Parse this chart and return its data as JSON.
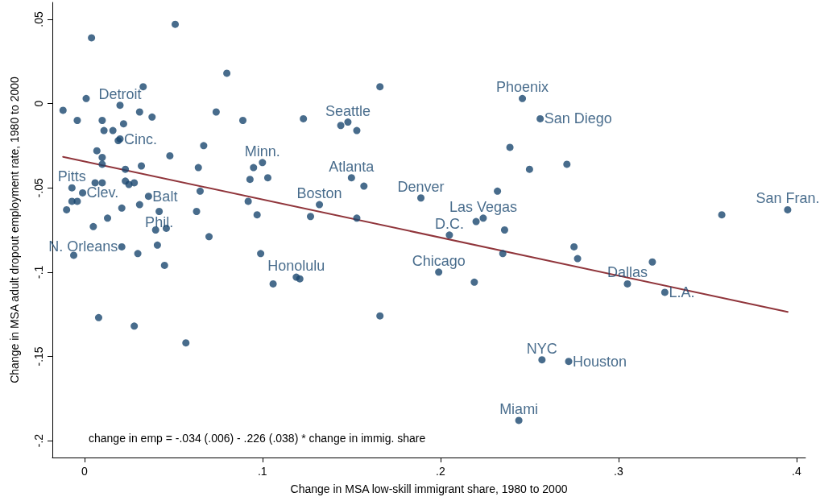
{
  "chart_data": {
    "type": "scatter",
    "xlabel": "Change in MSA low-skill immigrant share, 1980 to 2000",
    "ylabel": "Change in MSA adult dropout employment rate, 1980 to 2000",
    "xlim": [
      -0.018,
      0.405
    ],
    "ylim": [
      -0.21,
      0.06
    ],
    "xticks": [
      0,
      {
        "value": 0.1,
        "label": ".1"
      },
      {
        "value": 0.2,
        "label": ".2"
      },
      {
        "value": 0.3,
        "label": ".3"
      },
      {
        "value": 0.4,
        "label": ".4"
      }
    ],
    "yticks": [
      {
        "value": -0.2,
        "label": "-.2"
      },
      {
        "value": -0.15,
        "label": "-.15"
      },
      {
        "value": -0.1,
        "label": "-.1"
      },
      {
        "value": -0.05,
        "label": "-.05"
      },
      0,
      {
        "value": 0.05,
        "label": ".05"
      }
    ],
    "grid": false,
    "marker": "circle",
    "series": [
      {
        "type": "scatter",
        "color": "#1a476f",
        "x": [
          0.004,
          0.051,
          0.08,
          0.033,
          0.001,
          -0.012,
          -0.004,
          0.01,
          0.02,
          0.031,
          0.038,
          0.074,
          0.089,
          0.011,
          0.016,
          0.022,
          0.02,
          0.019,
          0.067,
          0.048,
          0.007,
          0.01,
          0.01,
          0.032,
          0.023,
          0.064,
          0.095,
          0.1,
          0.103,
          0.093,
          0.006,
          0.01,
          -0.007,
          -0.001,
          -0.007,
          -0.004,
          -0.01,
          0.023,
          0.025,
          0.028,
          0.036,
          0.031,
          0.021,
          0.042,
          0.063,
          0.065,
          0.092,
          0.097,
          0.013,
          0.005,
          0.04,
          0.046,
          0.07,
          0.021,
          0.041,
          0.03,
          -0.006,
          0.045,
          0.099,
          0.106,
          0.008,
          0.028,
          0.057,
          0.166,
          0.166,
          0.123,
          0.144,
          0.148,
          0.153,
          0.15,
          0.157,
          0.189,
          0.132,
          0.127,
          0.153,
          0.232,
          0.22,
          0.224,
          0.236,
          0.205,
          0.235,
          0.199,
          0.219,
          0.119,
          0.121,
          0.239,
          0.25,
          0.246,
          0.256,
          0.271,
          0.358,
          0.395,
          0.275,
          0.277,
          0.319,
          0.305,
          0.326,
          0.257,
          0.272,
          0.244
        ],
        "values": [
          0.039,
          0.047,
          0.018,
          0.01,
          0.003,
          -0.004,
          -0.01,
          -0.01,
          -0.001,
          -0.005,
          -0.008,
          -0.005,
          -0.01,
          -0.016,
          -0.016,
          -0.012,
          -0.021,
          -0.022,
          -0.025,
          -0.031,
          -0.028,
          -0.032,
          -0.036,
          -0.037,
          -0.039,
          -0.038,
          -0.038,
          -0.035,
          -0.044,
          -0.045,
          -0.047,
          -0.047,
          -0.05,
          -0.053,
          -0.058,
          -0.058,
          -0.063,
          -0.046,
          -0.048,
          -0.047,
          -0.055,
          -0.06,
          -0.062,
          -0.064,
          -0.064,
          -0.052,
          -0.058,
          -0.066,
          -0.068,
          -0.073,
          -0.075,
          -0.074,
          -0.079,
          -0.085,
          -0.084,
          -0.089,
          -0.09,
          -0.096,
          -0.089,
          -0.107,
          -0.127,
          -0.132,
          -0.142,
          -0.126,
          0.01,
          -0.009,
          -0.013,
          -0.011,
          -0.016,
          -0.044,
          -0.049,
          -0.056,
          -0.06,
          -0.067,
          -0.068,
          -0.052,
          -0.07,
          -0.068,
          -0.075,
          -0.078,
          -0.089,
          -0.1,
          -0.106,
          -0.103,
          -0.104,
          -0.026,
          -0.039,
          0.003,
          -0.009,
          -0.036,
          -0.066,
          -0.063,
          -0.085,
          -0.092,
          -0.094,
          -0.107,
          -0.112,
          -0.152,
          -0.153,
          -0.188
        ]
      },
      {
        "type": "line",
        "color": "#90353b",
        "marker": "none",
        "line_style": "solid",
        "x": [
          -0.012,
          0.395
        ],
        "values": [
          -0.0316,
          -0.1236
        ]
      }
    ],
    "annotations": [
      {
        "text": "Detroit",
        "x": 0.02,
        "y": -0.001
      },
      {
        "text": "Cinc.",
        "x": 0.02,
        "y": -0.021
      },
      {
        "text": "Pitts",
        "x": -0.007,
        "y": -0.05
      },
      {
        "text": "Clev.",
        "x": -0.001,
        "y": -0.053
      },
      {
        "text": "Balt",
        "x": 0.036,
        "y": -0.055
      },
      {
        "text": "Phil.",
        "x": 0.042,
        "y": -0.064
      },
      {
        "text": "N. Orleans",
        "x": 0.021,
        "y": -0.085
      },
      {
        "text": "Minn.",
        "x": 0.1,
        "y": -0.035
      },
      {
        "text": "Seattle",
        "x": 0.148,
        "y": -0.011
      },
      {
        "text": "Atlanta",
        "x": 0.15,
        "y": -0.044
      },
      {
        "text": "Denver",
        "x": 0.189,
        "y": -0.056
      },
      {
        "text": "Boston",
        "x": 0.132,
        "y": -0.06
      },
      {
        "text": "Las Vegas",
        "x": 0.224,
        "y": -0.068
      },
      {
        "text": "D.C.",
        "x": 0.205,
        "y": -0.078
      },
      {
        "text": "Chicago",
        "x": 0.199,
        "y": -0.1
      },
      {
        "text": "Honolulu",
        "x": 0.119,
        "y": -0.103
      },
      {
        "text": "Phoenix",
        "x": 0.246,
        "y": 0.003
      },
      {
        "text": "San Diego",
        "x": 0.256,
        "y": -0.009
      },
      {
        "text": "San Fran.",
        "x": 0.395,
        "y": -0.063
      },
      {
        "text": "Dallas",
        "x": 0.305,
        "y": -0.107
      },
      {
        "text": "L.A.",
        "x": 0.326,
        "y": -0.112
      },
      {
        "text": "NYC",
        "x": 0.257,
        "y": -0.152
      },
      {
        "text": "Houston",
        "x": 0.272,
        "y": -0.153
      },
      {
        "text": "Miami",
        "x": 0.244,
        "y": -0.188
      },
      "change in emp = -.034 (.006) - .226 (.038) * change in immig. share"
    ]
  }
}
